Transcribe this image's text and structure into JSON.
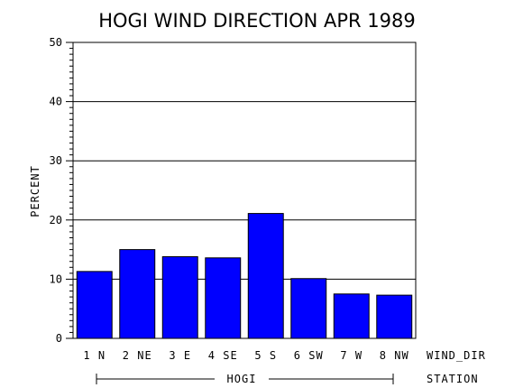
{
  "chart_data": {
    "type": "bar",
    "title": "HOGI WIND DIRECTION APR 1989",
    "ylabel": "PERCENT",
    "xlabel": "WIND_DIR",
    "group_axis_label": "STATION",
    "group_name": "HOGI",
    "categories": [
      "1 N",
      "2 NE",
      "3 E",
      "4 SE",
      "5 S",
      "6 SW",
      "7 W",
      "8 NW"
    ],
    "values": [
      11.3,
      15.0,
      13.8,
      13.6,
      21.1,
      10.1,
      7.5,
      7.3
    ],
    "ylim": [
      0,
      50
    ],
    "yticks": [
      0,
      10,
      20,
      30,
      40,
      50
    ],
    "grid": true,
    "bar_color": "#0000ff"
  }
}
